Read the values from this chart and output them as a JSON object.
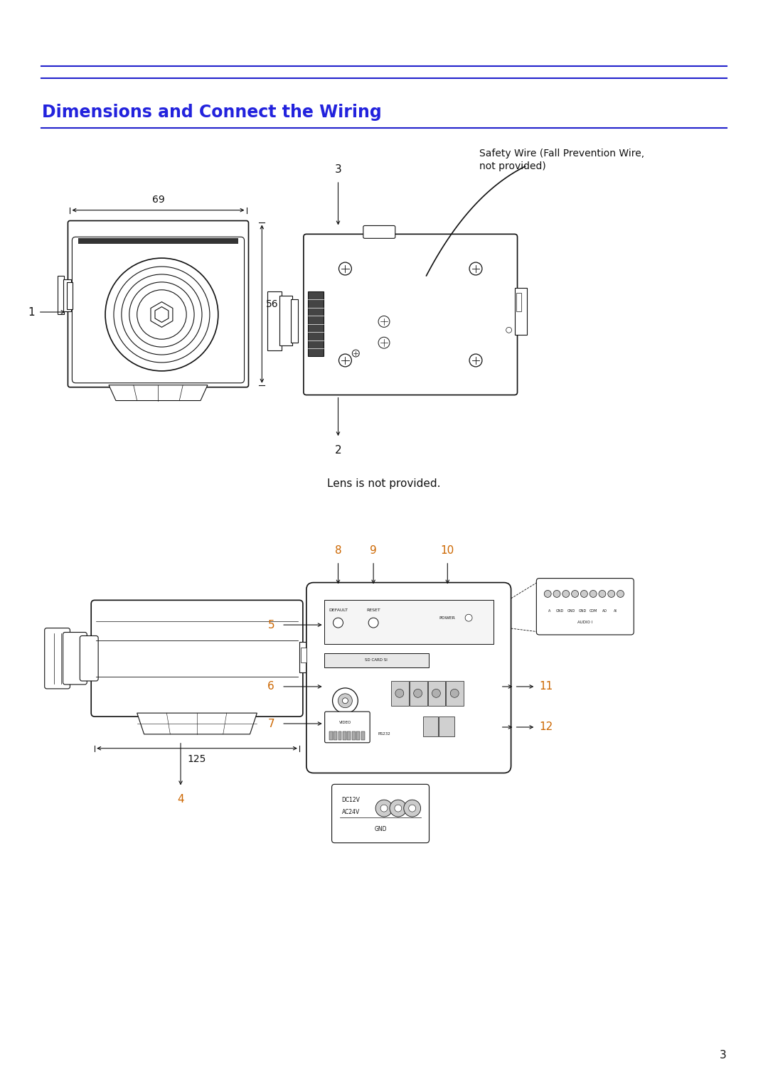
{
  "page_width": 10.8,
  "page_height": 15.25,
  "bg_color": "#ffffff",
  "blue_color": "#2222cc",
  "title_color": "#2222dd",
  "title_text": "Dimensions and Connect the Wiring",
  "title_fontsize": 17,
  "lens_note": "Lens is not provided.",
  "safety_wire_label_line1": "Safety Wire (Fall Prevention Wire,",
  "safety_wire_label_line2": "not provided)",
  "dim_69": "69",
  "dim_56": "56",
  "dim_125": "125",
  "page_number": "3",
  "orange_color": "#cc6600",
  "black": "#111111"
}
